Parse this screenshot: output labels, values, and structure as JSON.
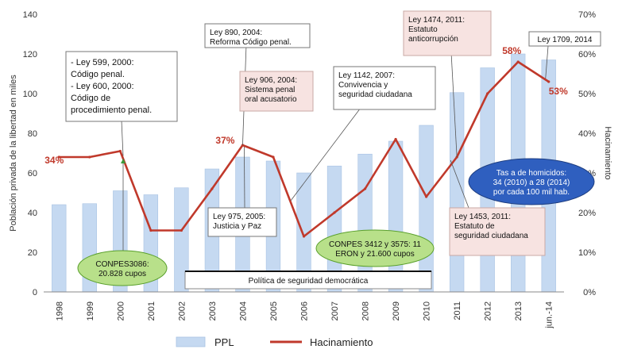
{
  "chart_data": {
    "type": "bar+line",
    "categories": [
      "1998",
      "1999",
      "2000",
      "2001",
      "2002",
      "2003",
      "2004",
      "2005",
      "2006",
      "2007",
      "2008",
      "2009",
      "2010",
      "2011",
      "2012",
      "2013",
      "jun.-14"
    ],
    "series": [
      {
        "name": "PPL",
        "type": "bar",
        "axis": "left",
        "color": "#c5d9f1",
        "values": [
          44,
          44.5,
          51,
          49,
          52.5,
          62,
          68,
          66,
          60,
          63.5,
          69.5,
          76,
          84,
          100.5,
          113,
          120,
          117
        ]
      },
      {
        "name": "Hacinamiento",
        "type": "line",
        "axis": "right",
        "color": "#c0392b",
        "values": [
          34,
          34,
          35.5,
          15.5,
          15.5,
          26,
          37,
          34,
          14,
          20,
          26,
          38.5,
          24,
          34,
          50,
          58,
          53
        ]
      }
    ],
    "ylabel": "Población privada de la libertad en miles",
    "y2label": "Hacinamiento",
    "ylim": [
      0,
      140
    ],
    "y2lim": [
      0,
      70
    ],
    "yticks": [
      "0",
      "20",
      "40",
      "60",
      "80",
      "100",
      "120",
      "140"
    ],
    "y2ticks": [
      "0%",
      "10%",
      "20%",
      "30%",
      "40%",
      "50%",
      "60%",
      "70%"
    ],
    "point_labels": [
      {
        "index": 0,
        "text": "34%"
      },
      {
        "index": 6,
        "text": "37%"
      },
      {
        "index": 15,
        "text": "58%"
      },
      {
        "index": 16,
        "text": "53%"
      }
    ],
    "annotations": [
      {
        "id": "ley599",
        "lines": [
          "- Ley 599, 2000:",
          "Código penal.",
          "- Ley 600, 2000:",
          "Código de",
          "procedimiento penal."
        ]
      },
      {
        "id": "ley890",
        "lines": [
          "Ley 890, 2004:",
          "Reforma Código penal."
        ]
      },
      {
        "id": "ley906",
        "lines": [
          "Ley 906, 2004:",
          "Sistema penal",
          "oral acusatorio"
        ]
      },
      {
        "id": "ley1142",
        "lines": [
          "Ley 1142, 2007:",
          "Convivencia y",
          "seguridad ciudadana"
        ]
      },
      {
        "id": "ley1474",
        "lines": [
          "Ley 1474, 2011:",
          "Estatuto",
          "anticorrupción"
        ]
      },
      {
        "id": "ley1709",
        "lines": [
          "Ley 1709, 2014"
        ]
      },
      {
        "id": "ley975",
        "lines": [
          "Ley 975, 2005:",
          "Justicia y Paz"
        ]
      },
      {
        "id": "ley1453",
        "lines": [
          "Ley 1453, 2011:",
          "Estatuto de",
          "seguridad ciudadana"
        ]
      },
      {
        "id": "homicidios",
        "lines": [
          "Tas a de homicidos:",
          "34 (2010) a 28 (2014)",
          "por cada 100 mil hab."
        ]
      },
      {
        "id": "conpes3086",
        "lines": [
          "CONPES3086:",
          "20.828 cupos"
        ]
      },
      {
        "id": "conpes3412",
        "lines": [
          "CONPES 3412 y 3575: 11",
          "ERON y 21.600 cupos"
        ]
      },
      {
        "id": "politica",
        "lines": [
          "Política de seguridad democrática"
        ]
      }
    ],
    "legend": {
      "position": "bottom",
      "items": [
        "PPL",
        "Hacinamiento"
      ]
    },
    "grid": false
  }
}
